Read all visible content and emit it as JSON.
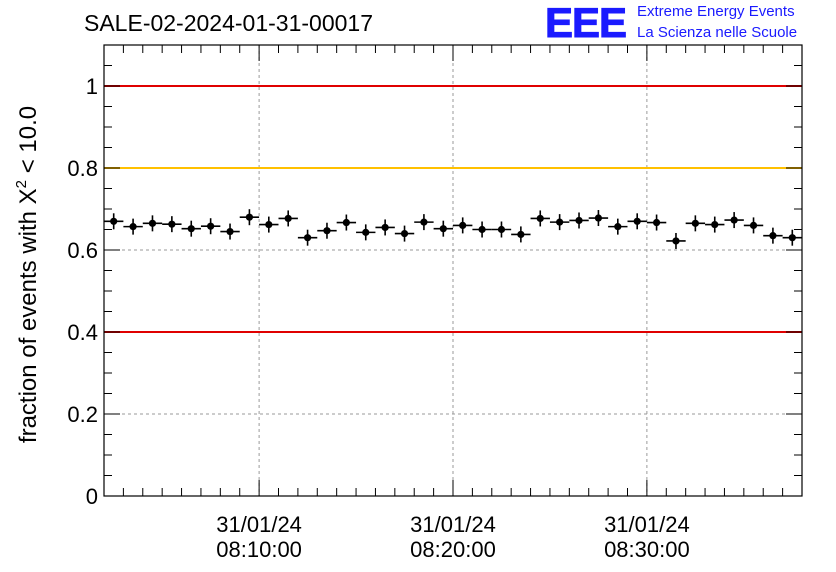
{
  "title": "SALE-02-2024-01-31-00017",
  "logo": {
    "mark": "EEE",
    "line1": "Extreme Energy Events",
    "line2": "La Scienza nelle Scuole",
    "color": "#1a1aff"
  },
  "chart_data": {
    "type": "scatter",
    "title": "SALE-02-2024-01-31-00017",
    "ylabel": "fraction of events with X² < 10.0",
    "ylabel_parts": {
      "prefix": "fraction of events with X",
      "sup": "2",
      "suffix": " < 10.0"
    },
    "xlabel": "",
    "ylim": [
      0,
      1.1
    ],
    "xlim": [
      "2024-01-31 08:02:00",
      "2024-01-31 08:38:00"
    ],
    "grid": true,
    "y_ticks": [
      {
        "value": 0,
        "label": "0"
      },
      {
        "value": 0.2,
        "label": "0.2"
      },
      {
        "value": 0.4,
        "label": "0.4"
      },
      {
        "value": 0.6,
        "label": "0.6"
      },
      {
        "value": 0.8,
        "label": "0.8"
      },
      {
        "value": 1.0,
        "label": "1"
      }
    ],
    "x_ticks": [
      {
        "value": "2024-01-31 08:10:00",
        "date": "31/01/24",
        "time": "08:10:00"
      },
      {
        "value": "2024-01-31 08:20:00",
        "date": "31/01/24",
        "time": "08:20:00"
      },
      {
        "value": "2024-01-31 08:30:00",
        "date": "31/01/24",
        "time": "08:30:00"
      }
    ],
    "reference_lines": [
      {
        "y": 1.0,
        "color": "#e00000"
      },
      {
        "y": 0.8,
        "color": "#ffc000"
      },
      {
        "y": 0.4,
        "color": "#e00000"
      }
    ],
    "series": [
      {
        "color": "#000000",
        "x": [
          "2024-01-31 08:02:30",
          "2024-01-31 08:03:30",
          "2024-01-31 08:04:30",
          "2024-01-31 08:05:30",
          "2024-01-31 08:06:30",
          "2024-01-31 08:07:30",
          "2024-01-31 08:08:30",
          "2024-01-31 08:09:30",
          "2024-01-31 08:10:30",
          "2024-01-31 08:11:30",
          "2024-01-31 08:12:30",
          "2024-01-31 08:13:30",
          "2024-01-31 08:14:30",
          "2024-01-31 08:15:30",
          "2024-01-31 08:16:30",
          "2024-01-31 08:17:30",
          "2024-01-31 08:18:30",
          "2024-01-31 08:19:30",
          "2024-01-31 08:20:30",
          "2024-01-31 08:21:30",
          "2024-01-31 08:22:30",
          "2024-01-31 08:23:30",
          "2024-01-31 08:24:30",
          "2024-01-31 08:25:30",
          "2024-01-31 08:26:30",
          "2024-01-31 08:27:30",
          "2024-01-31 08:28:30",
          "2024-01-31 08:29:30",
          "2024-01-31 08:30:30",
          "2024-01-31 08:31:30",
          "2024-01-31 08:32:30",
          "2024-01-31 08:33:30",
          "2024-01-31 08:34:30",
          "2024-01-31 08:35:30",
          "2024-01-31 08:36:30",
          "2024-01-31 08:37:30"
        ],
        "y": [
          0.67,
          0.657,
          0.665,
          0.663,
          0.652,
          0.658,
          0.645,
          0.68,
          0.662,
          0.677,
          0.63,
          0.647,
          0.667,
          0.643,
          0.655,
          0.64,
          0.668,
          0.652,
          0.66,
          0.65,
          0.65,
          0.638,
          0.677,
          0.668,
          0.672,
          0.678,
          0.657,
          0.67,
          0.667,
          0.622,
          0.665,
          0.662,
          0.673,
          0.66,
          0.635,
          0.63
        ]
      }
    ]
  }
}
